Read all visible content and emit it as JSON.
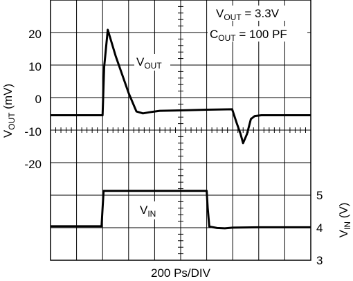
{
  "chart_data": {
    "type": "line",
    "xlabel": "200 Ps/DIV",
    "left_axis": {
      "label_main": "V",
      "label_sub": "OUT",
      "label_unit": " (mV)",
      "ticks": [
        "20",
        "10",
        "0",
        "-10",
        "-20"
      ],
      "ylim": [
        -40,
        30
      ]
    },
    "right_axis": {
      "label_main": "V",
      "label_sub": "IN",
      "label_unit": " (V)",
      "ticks": [
        "5",
        "4",
        "3"
      ],
      "ylim": [
        3,
        10.5
      ]
    },
    "grid": true,
    "annotations": {
      "vout_main": "V",
      "vout_sub": "OUT",
      "vout_value": " = 3.3V",
      "cout_main": "C",
      "cout_sub": "OUT",
      "cout_value": " = 100 PF",
      "trace_vout_main": "V",
      "trace_vout_sub": "OUT",
      "trace_vin_main": "V",
      "trace_vin_sub": "IN"
    },
    "series": [
      {
        "name": "VOUT",
        "x": [
          0,
          2.0,
          2.06,
          2.2,
          2.5,
          3.0,
          3.3,
          3.55,
          3.8,
          4.0,
          4.2,
          5.0,
          6.0,
          6.98,
          7.15,
          7.3,
          7.4,
          7.55,
          7.7,
          7.85,
          8.1,
          8.5,
          10
        ],
        "values": [
          -1,
          -1,
          12,
          22,
          15,
          5,
          0,
          -0.5,
          -0.2,
          0,
          0.2,
          0.3,
          0.5,
          0.6,
          -3,
          -6,
          -8.5,
          -6,
          -2,
          -1.2,
          -1,
          -1,
          -1
        ]
      },
      {
        "name": "VIN",
        "x": [
          0,
          1.96,
          2.0,
          2.04,
          6.0,
          6.04,
          6.1,
          6.4,
          6.7,
          7.0,
          8.0,
          10
        ],
        "values": [
          3.98,
          3.98,
          4.5,
          5.0,
          5.0,
          4.5,
          3.97,
          3.93,
          3.92,
          3.94,
          3.95,
          3.95
        ]
      }
    ]
  }
}
